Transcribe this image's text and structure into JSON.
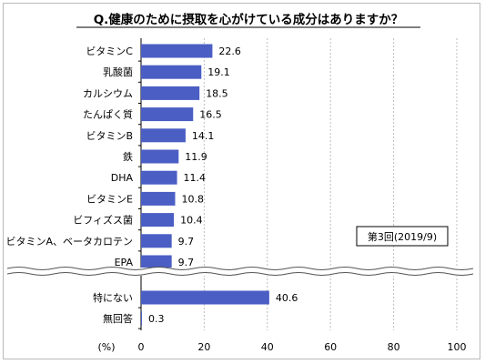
{
  "chart_data": {
    "type": "bar",
    "orientation": "horizontal",
    "title": "Q.健康のために摂取を心がけている成分はありますか？",
    "xlabel": "(%)",
    "xlim": [
      0,
      100
    ],
    "xticks": [
      0,
      20,
      40,
      60,
      80,
      100
    ],
    "grid": true,
    "categories": [
      "ビタミンC",
      "乳酸菌",
      "カルシウム",
      "たんぱく質",
      "ビタミンB",
      "鉄",
      "DHA",
      "ビタミンE",
      "ビフィズス菌",
      "ビタミンA、ベータカロテン",
      "EPA"
    ],
    "values": [
      22.6,
      19.1,
      18.5,
      16.5,
      14.1,
      11.9,
      11.4,
      10.8,
      10.4,
      9.7,
      9.7
    ],
    "value_labels": [
      "22.6",
      "19.1",
      "18.5",
      "16.5",
      "14.1",
      "11.9",
      "11.4",
      "10.8",
      "10.4",
      "9.7",
      "9.7"
    ],
    "extra_categories": [
      "特にない",
      "無回答"
    ],
    "extra_values": [
      40.6,
      0.3
    ],
    "extra_value_labels": [
      "40.6",
      "0.3"
    ],
    "legend_text": "第3回(2019/9)",
    "bar_color": "#4a5ec4"
  }
}
